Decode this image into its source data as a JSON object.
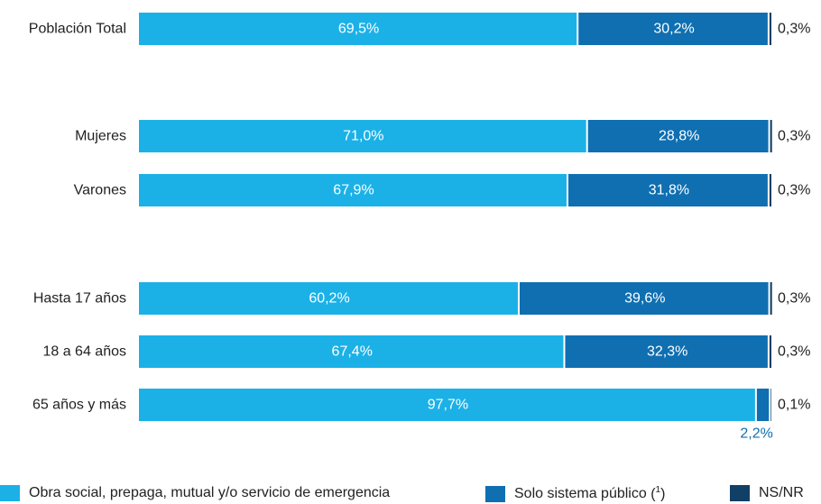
{
  "chart_data": {
    "type": "bar",
    "orientation": "horizontal",
    "stacked": true,
    "categories": [
      "Población Total",
      "Mujeres",
      "Varones",
      "Hasta 17 años",
      "18 a 64 años",
      "65 años y más"
    ],
    "series": [
      {
        "name": "Obra social, prepaga, mutual y/o servicio de emergencia",
        "values": [
          69.5,
          71.0,
          67.9,
          60.2,
          67.4,
          97.7
        ],
        "color": "#1bb1e7"
      },
      {
        "name": "Solo sistema público",
        "values": [
          30.2,
          28.8,
          31.8,
          39.6,
          32.3,
          2.2
        ],
        "color": "#0f6fb1"
      },
      {
        "name": "NS/NR",
        "values": [
          0.3,
          0.3,
          0.3,
          0.3,
          0.3,
          0.1
        ],
        "color": "#123f66"
      }
    ],
    "labels": [
      [
        "69,5%",
        "71,0%",
        "67,9%",
        "60,2%",
        "67,4%",
        "97,7%"
      ],
      [
        "30,2%",
        "28,8%",
        "31,8%",
        "39,6%",
        "32,3%",
        "2,2%"
      ],
      [
        "0,3%",
        "0,3%",
        "0,3%",
        "0,3%",
        "0,3%",
        "0,1%"
      ]
    ],
    "xlim": [
      0,
      100
    ],
    "legend": {
      "position": "bottom",
      "footnote_mark": "1",
      "footnote_series_index": 1
    },
    "text_color": "#222222",
    "label_color_inside": "#ffffff"
  }
}
